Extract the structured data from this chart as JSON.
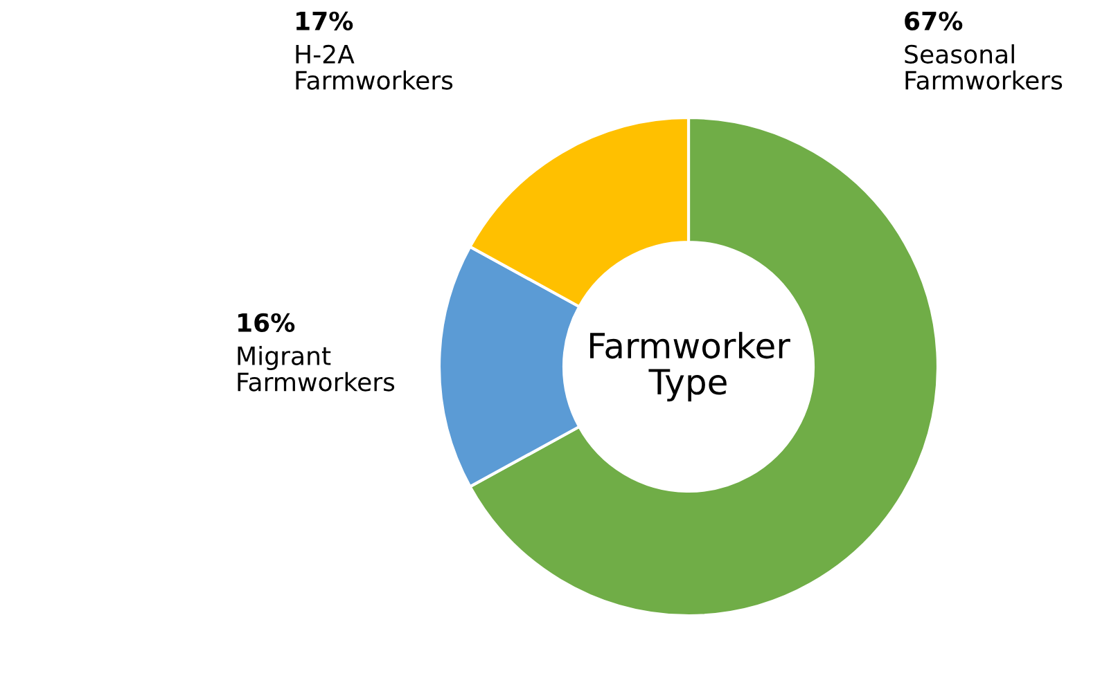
{
  "chart_data": {
    "type": "donut",
    "title": "Farmworker\nType",
    "categories": [
      "Seasonal\nFarmworkers",
      "Migrant\nFarmworkers",
      "H-2A\nFarmworkers"
    ],
    "values": [
      67,
      16,
      17
    ],
    "colors": [
      "#70ad47",
      "#5b9bd5",
      "#ffc000"
    ],
    "value_labels": [
      "67%",
      "16%",
      "17%"
    ]
  }
}
